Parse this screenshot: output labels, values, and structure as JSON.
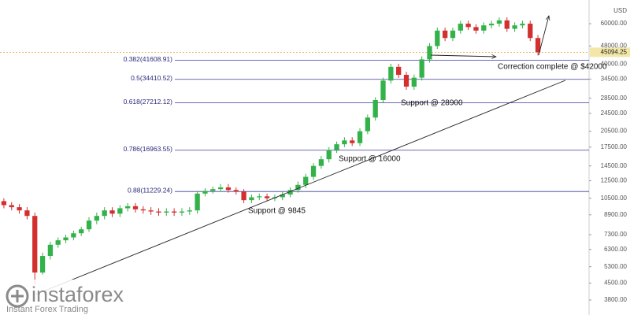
{
  "chart_data": {
    "type": "candlestick",
    "currency": "USD",
    "log_scale": true,
    "up_color": "#33b24a",
    "down_color": "#d32f2f",
    "ylim": [
      3540,
      76000
    ],
    "yticks": [
      {
        "value": 60000,
        "label": "60000.00"
      },
      {
        "value": 48000,
        "label": "48000.00"
      },
      {
        "value": 40000,
        "label": "40000.00"
      },
      {
        "value": 34500,
        "label": "34500.00"
      },
      {
        "value": 28500,
        "label": "28500.00"
      },
      {
        "value": 24500,
        "label": "24500.00"
      },
      {
        "value": 20500,
        "label": "20500.00"
      },
      {
        "value": 17500,
        "label": "17500.00"
      },
      {
        "value": 14500,
        "label": "14500.00"
      },
      {
        "value": 12500,
        "label": "12500.00"
      },
      {
        "value": 10500,
        "label": "10500.00"
      },
      {
        "value": 8900,
        "label": "8900.00"
      },
      {
        "value": 7300,
        "label": "7300.00"
      },
      {
        "value": 6300,
        "label": "6300.00"
      },
      {
        "value": 5300,
        "label": "5300.00"
      },
      {
        "value": 4500,
        "label": "4500.00"
      },
      {
        "value": 3800,
        "label": "3800.00"
      }
    ],
    "last_price": 45094.25,
    "fib_levels": [
      {
        "label": "0.382(41608.91)",
        "value": 41608.91
      },
      {
        "label": "0.5(34410.52)",
        "value": 34410.52
      },
      {
        "label": "0.618(27212.12)",
        "value": 27212.12
      },
      {
        "label": "0.786(16963.55)",
        "value": 16963.55
      },
      {
        "label": "0.88(11229.24)",
        "value": 11229.24
      }
    ],
    "annotations": [
      "Support @ 9845",
      "Support @ 16000",
      "Support @ 28900",
      "Correction complete @ $42000"
    ],
    "watermark": {
      "brand": "instaforex",
      "tagline": "Instant Forex Trading"
    },
    "open": [
      10200,
      9800,
      9600,
      9300,
      8800,
      5000,
      5900,
      6600,
      6900,
      7100,
      7400,
      7700,
      8400,
      8800,
      9300,
      9000,
      9500,
      9700,
      9400,
      9300,
      9200,
      9100,
      9200,
      9100,
      9200,
      9300,
      11000,
      11300,
      11500,
      11700,
      11400,
      11200,
      10300,
      10600,
      10700,
      10500,
      10600,
      10900,
      11400,
      12000,
      13000,
      14500,
      15500,
      17000,
      18000,
      18700,
      18200,
      20500,
      23500,
      28000,
      34000,
      39000,
      36000,
      32000,
      35000,
      42000,
      48000,
      56000,
      52000,
      56000,
      60000,
      58000,
      56000,
      59000,
      60000,
      62000,
      57000,
      59000,
      60000,
      52000
    ],
    "high": [
      10500,
      10100,
      9900,
      9600,
      9100,
      6100,
      6800,
      7100,
      7300,
      7600,
      7900,
      8700,
      9100,
      9600,
      9600,
      9800,
      10000,
      10000,
      9700,
      9600,
      9500,
      9500,
      9500,
      9500,
      9600,
      11300,
      11600,
      11800,
      12100,
      12100,
      11700,
      11500,
      10900,
      11000,
      11000,
      10900,
      11200,
      11700,
      12400,
      13400,
      14900,
      16000,
      17500,
      18500,
      19300,
      19300,
      21100,
      24200,
      28800,
      35000,
      40200,
      40200,
      37100,
      36100,
      43300,
      49400,
      57700,
      57700,
      57700,
      61800,
      61800,
      59700,
      60800,
      61800,
      63900,
      63900,
      60800,
      61800,
      61800,
      53600
    ],
    "low": [
      9500,
      9300,
      9000,
      8500,
      4400,
      4900,
      5700,
      6400,
      6700,
      6900,
      7200,
      7500,
      8100,
      8500,
      8700,
      8700,
      9200,
      9100,
      9000,
      8900,
      8800,
      8800,
      8800,
      8800,
      8900,
      9000,
      10700,
      11000,
      11200,
      11100,
      10900,
      10000,
      10000,
      10300,
      10200,
      10200,
      10300,
      10600,
      11100,
      11600,
      12600,
      14100,
      15000,
      16500,
      17500,
      17700,
      17700,
      19900,
      22800,
      27200,
      33000,
      34900,
      31000,
      31000,
      34000,
      40700,
      46600,
      50400,
      50400,
      54300,
      56300,
      54300,
      54300,
      57200,
      58200,
      55300,
      55300,
      57200,
      50400,
      43700
    ],
    "close": [
      9800,
      9600,
      9300,
      8800,
      5000,
      5900,
      6600,
      6900,
      7100,
      7400,
      7700,
      8400,
      8800,
      9300,
      9000,
      9500,
      9700,
      9400,
      9300,
      9200,
      9100,
      9200,
      9100,
      9200,
      9300,
      11000,
      11300,
      11500,
      11700,
      11400,
      11200,
      10300,
      10600,
      10700,
      10500,
      10600,
      10900,
      11400,
      12000,
      13000,
      14500,
      15500,
      17000,
      18000,
      18700,
      18200,
      20500,
      23500,
      28000,
      34000,
      39000,
      36000,
      32000,
      35000,
      42000,
      48000,
      56000,
      52000,
      56000,
      60000,
      58000,
      56000,
      59000,
      60000,
      62000,
      57000,
      59000,
      60000,
      52000,
      45100
    ]
  }
}
